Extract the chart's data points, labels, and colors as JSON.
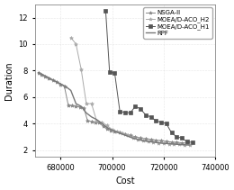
{
  "title": "",
  "xlabel": "Cost",
  "ylabel": "Duration",
  "xlim": [
    670000,
    740000
  ],
  "ylim": [
    1.5,
    13
  ],
  "xticks": [
    680000,
    700000,
    720000,
    740000
  ],
  "yticks": [
    2,
    4,
    6,
    8,
    10,
    12
  ],
  "background_color": "#ffffff",
  "grid_color": "#d0d0d0",
  "series": {
    "NSGA-II": {
      "color": "#888888",
      "marker": "*",
      "markersize": 3,
      "linewidth": 0.7,
      "x": [
        671500,
        672500,
        674000,
        675500,
        677000,
        678500,
        680000,
        681500,
        683000,
        684500,
        686000,
        687500,
        689000,
        690500,
        692000,
        693500,
        695000,
        696500,
        698000,
        699500,
        701000,
        703000,
        705000,
        707000,
        709000,
        711000,
        713000,
        715000,
        717000,
        719000,
        721000,
        723000,
        725000,
        727000,
        729000
      ],
      "y": [
        7.85,
        7.7,
        7.55,
        7.4,
        7.25,
        7.15,
        6.95,
        6.8,
        5.4,
        5.35,
        5.3,
        5.25,
        5.2,
        4.2,
        4.15,
        4.1,
        4.05,
        3.8,
        3.6,
        3.5,
        3.4,
        3.3,
        3.2,
        3.1,
        3.0,
        2.9,
        2.85,
        2.8,
        2.75,
        2.7,
        2.65,
        2.6,
        2.58,
        2.55,
        2.52
      ]
    },
    "MOEA/D-ACO_H2": {
      "color": "#aaaaaa",
      "marker": "*",
      "markersize": 3,
      "linewidth": 0.7,
      "x": [
        684000,
        686000,
        688000,
        690000,
        692000,
        694000,
        696000,
        698000,
        700000,
        702000,
        704000,
        706000,
        708000,
        710000,
        712000,
        714000,
        716000,
        718000,
        720000,
        722000,
        724000,
        726000,
        728000,
        730000
      ],
      "y": [
        10.5,
        10.0,
        8.1,
        5.5,
        5.5,
        4.2,
        4.1,
        3.85,
        3.55,
        3.4,
        3.25,
        3.1,
        2.95,
        2.8,
        2.7,
        2.65,
        2.6,
        2.55,
        2.5,
        2.48,
        2.45,
        2.42,
        2.4,
        2.38
      ]
    },
    "MOEA/D-ACO_H1": {
      "color": "#555555",
      "marker": "s",
      "markersize": 3.5,
      "linewidth": 0.7,
      "x": [
        697500,
        699000,
        701000,
        703000,
        705000,
        707000,
        709000,
        711000,
        713000,
        715000,
        717000,
        719000,
        721000,
        723000,
        725000,
        727000,
        729000,
        731000
      ],
      "y": [
        12.5,
        7.9,
        7.8,
        4.9,
        4.85,
        4.8,
        5.3,
        5.1,
        4.65,
        4.5,
        4.2,
        4.1,
        4.0,
        3.3,
        3.0,
        2.9,
        2.62,
        2.58
      ]
    },
    "RPF": {
      "color": "#777777",
      "marker": null,
      "markersize": 0,
      "linewidth": 1.0,
      "x": [
        671500,
        674000,
        676000,
        678000,
        680000,
        682000,
        684000,
        686000,
        688000,
        690000,
        692000,
        694000,
        696000,
        698000,
        700000,
        702000,
        704000,
        706000,
        708000,
        710000,
        712000,
        714000,
        716000,
        718000,
        720000,
        722000,
        724000,
        726000,
        728000,
        730000
      ],
      "y": [
        7.85,
        7.6,
        7.4,
        7.2,
        7.0,
        6.8,
        6.5,
        5.5,
        5.3,
        4.8,
        4.5,
        4.3,
        4.0,
        3.7,
        3.5,
        3.35,
        3.2,
        3.05,
        2.9,
        2.8,
        2.7,
        2.65,
        2.6,
        2.55,
        2.5,
        2.48,
        2.45,
        2.42,
        2.4,
        2.38
      ]
    }
  }
}
